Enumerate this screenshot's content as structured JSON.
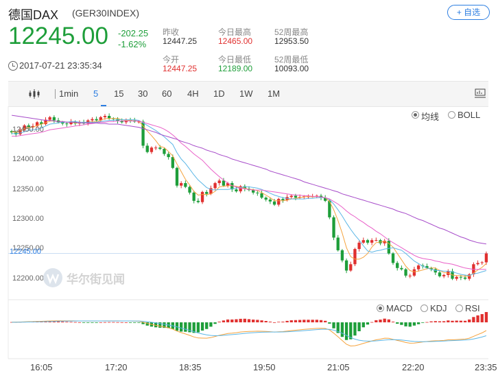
{
  "header": {
    "title": "德国DAX",
    "code": "(GER30INDEX)",
    "add_label": "+ 自选",
    "price": "12245.00",
    "change": "-202.25",
    "change_pct": "-1.62%",
    "timestamp": "2017-07-21 23:35:34"
  },
  "stats": [
    {
      "label": "昨收",
      "value": "12447.25",
      "color": "dark"
    },
    {
      "label": "今日最高",
      "value": "12465.00",
      "color": "red"
    },
    {
      "label": "52周最高",
      "value": "12953.50",
      "color": "dark"
    },
    {
      "label": "今开",
      "value": "12447.25",
      "color": "red"
    },
    {
      "label": "今日最低",
      "value": "12189.00",
      "color": "green"
    },
    {
      "label": "52周最低",
      "value": "10093.00",
      "color": "dark"
    }
  ],
  "toolbar": {
    "timeframes": [
      "1min",
      "5",
      "15",
      "30",
      "60",
      "4H",
      "1D",
      "1W",
      "1M"
    ],
    "active": "5"
  },
  "indicator_options": {
    "main": [
      {
        "label": "均线",
        "selected": true
      },
      {
        "label": "BOLL",
        "selected": false
      }
    ],
    "sub": [
      {
        "label": "MACD",
        "selected": true
      },
      {
        "label": "KDJ",
        "selected": false
      },
      {
        "label": "RSI",
        "selected": false
      }
    ]
  },
  "watermark": "华尔街见闻",
  "colors": {
    "up": "#e0302f",
    "down": "#1e9e3a",
    "ma1": "#f5a23c",
    "ma2": "#5bb6e6",
    "ma3": "#e95fc8",
    "ma4": "#a64ac9",
    "accent": "#2b7de1"
  },
  "chart_data": {
    "type": "candlestick",
    "x_axis_labels": [
      "16:05",
      "17:20",
      "18:35",
      "19:50",
      "21:05",
      "22:20",
      "23:35"
    ],
    "y_axis_labels": [
      "12450.00",
      "12400.00",
      "12350.00",
      "12300.00",
      "12250.00",
      "12200.00"
    ],
    "ylim": [
      12185,
      12475
    ],
    "current_price_label": "12245.00",
    "current_price": 12245,
    "closes": [
      12436,
      12433,
      12440,
      12447,
      12444,
      12446,
      12452,
      12449,
      12456,
      12460,
      12455,
      12452,
      12450,
      12449,
      12453,
      12450,
      12452,
      12450,
      12455,
      12457,
      12455,
      12460,
      12462,
      12458,
      12457,
      12454,
      12452,
      12456,
      12455,
      12453,
      12453,
      12415,
      12405,
      12412,
      12412,
      12410,
      12402,
      12397,
      12380,
      12352,
      12356,
      12350,
      12341,
      12328,
      12326,
      12342,
      12339,
      12348,
      12356,
      12360,
      12352,
      12356,
      12346,
      12343,
      12351,
      12347,
      12345,
      12341,
      12340,
      12333,
      12330,
      12327,
      12322,
      12331,
      12329,
      12334,
      12336,
      12333,
      12334,
      12335,
      12335,
      12335,
      12336,
      12333,
      12328,
      12302,
      12270,
      12250,
      12234,
      12218,
      12228,
      12252,
      12262,
      12266,
      12262,
      12266,
      12266,
      12261,
      12265,
      12245,
      12230,
      12222,
      12220,
      12210,
      12210,
      12220,
      12226,
      12225,
      12222,
      12220,
      12215,
      12209,
      12211,
      12217,
      12205,
      12208,
      12207,
      12205,
      12212,
      12228,
      12230,
      12231,
      12245
    ],
    "series": [
      {
        "name": "MA5",
        "values": [
          12437,
          12436,
          12438,
          12442,
          12444,
          12444,
          12447,
          12449,
          12451,
          12454,
          12454,
          12453,
          12453,
          12452,
          12452,
          12451,
          12451,
          12451,
          12452,
          12453,
          12453,
          12455,
          12458,
          12458,
          12458,
          12458,
          12456,
          12455,
          12455,
          12454,
          12454,
          12446,
          12438,
          12431,
          12423,
          12414,
          12412,
          12406,
          12399,
          12386,
          12374,
          12362,
          12353,
          12343,
          12337,
          12338,
          12338,
          12339,
          12343,
          12350,
          12351,
          12352,
          12352,
          12351,
          12349,
          12348,
          12346,
          12346,
          12344,
          12341,
          12337,
          12333,
          12328,
          12328,
          12328,
          12329,
          12331,
          12332,
          12333,
          12334,
          12335,
          12334,
          12335,
          12334,
          12333,
          12327,
          12314,
          12297,
          12277,
          12254,
          12240,
          12236,
          12236,
          12239,
          12245,
          12255,
          12262,
          12263,
          12264,
          12261,
          12255,
          12245,
          12235,
          12225,
          12218,
          12216,
          12217,
          12219,
          12221,
          12222,
          12222,
          12218,
          12215,
          12214,
          12211,
          12210,
          12210,
          12209,
          12209,
          12214,
          12219,
          12223,
          12229
        ]
      },
      {
        "name": "MA10",
        "values": [
          12434,
          12434,
          12435,
          12437,
          12439,
          12440,
          12441,
          12443,
          12446,
          12449,
          12450,
          12451,
          12452,
          12452,
          12453,
          12453,
          12452,
          12452,
          12452,
          12452,
          12452,
          12453,
          12454,
          12455,
          12455,
          12456,
          12456,
          12456,
          12456,
          12456,
          12455,
          12451,
          12447,
          12443,
          12439,
          12434,
          12429,
          12423,
          12417,
          12404,
          12394,
          12387,
          12378,
          12369,
          12361,
          12355,
          12349,
          12346,
          12345,
          12346,
          12346,
          12346,
          12347,
          12348,
          12349,
          12350,
          12350,
          12349,
          12348,
          12346,
          12343,
          12340,
          12337,
          12335,
          12333,
          12332,
          12331,
          12331,
          12331,
          12331,
          12332,
          12332,
          12333,
          12333,
          12333,
          12330,
          12323,
          12314,
          12304,
          12293,
          12283,
          12274,
          12266,
          12257,
          12249,
          12247,
          12249,
          12250,
          12252,
          12253,
          12254,
          12252,
          12250,
          12245,
          12239,
          12233,
          12229,
          12225,
          12222,
          12220,
          12218,
          12218,
          12217,
          12217,
          12216,
          12214,
          12212,
          12211,
          12210,
          12213,
          12214,
          12216,
          12218
        ]
      },
      {
        "name": "MA20",
        "values": [
          12430,
          12430,
          12431,
          12432,
          12433,
          12434,
          12435,
          12436,
          12438,
          12440,
          12441,
          12442,
          12443,
          12444,
          12445,
          12446,
          12447,
          12448,
          12449,
          12450,
          12451,
          12452,
          12452,
          12453,
          12453,
          12454,
          12454,
          12454,
          12454,
          12454,
          12454,
          12452,
          12450,
          12448,
          12446,
          12444,
          12441,
          12437,
          12432,
          12426,
          12419,
          12414,
          12408,
          12402,
          12397,
          12392,
          12385,
          12378,
          12372,
          12366,
          12361,
          12356,
          12352,
          12350,
          12348,
          12347,
          12346,
          12345,
          12345,
          12345,
          12344,
          12343,
          12342,
          12341,
          12340,
          12339,
          12338,
          12337,
          12337,
          12336,
          12336,
          12335,
          12335,
          12334,
          12333,
          12331,
          12327,
          12323,
          12318,
          12312,
          12307,
          12303,
          12298,
          12294,
          12289,
          12285,
          12280,
          12276,
          12271,
          12266,
          12262,
          12258,
          12254,
          12250,
          12246,
          12242,
          12239,
          12237,
          12236,
          12235,
          12233,
          12232,
          12230,
          12229,
          12228,
          12226,
          12224,
          12222,
          12221,
          12220,
          12220,
          12220,
          12220
        ]
      },
      {
        "name": "MA60",
        "values": [
          12463,
          12462,
          12461,
          12460,
          12459,
          12458,
          12457,
          12456,
          12455,
          12455,
          12454,
          12453,
          12453,
          12452,
          12452,
          12452,
          12451,
          12451,
          12451,
          12451,
          12451,
          12450,
          12450,
          12449,
          12449,
          12449,
          12448,
          12447,
          12446,
          12445,
          12444,
          12442,
          12440,
          12438,
          12436,
          12433,
          12431,
          12429,
          12427,
          12425,
          12422,
          12420,
          12418,
          12415,
          12413,
          12411,
          12408,
          12406,
          12404,
          12401,
          12399,
          12397,
          12394,
          12392,
          12390,
          12388,
          12386,
          12384,
          12382,
          12380,
          12378,
          12375,
          12373,
          12371,
          12369,
          12367,
          12365,
          12363,
          12361,
          12358,
          12356,
          12354,
          12352,
          12350,
          12348,
          12346,
          12344,
          12342,
          12339,
          12337,
          12335,
          12333,
          12331,
          12329,
          12327,
          12325,
          12323,
          12321,
          12319,
          12317,
          12315,
          12312,
          12310,
          12308,
          12305,
          12302,
          12299,
          12297,
          12294,
          12291,
          12288,
          12285,
          12283,
          12280,
          12277,
          12274,
          12271,
          12269,
          12266,
          12264,
          12262,
          12261,
          12260
        ]
      }
    ],
    "macd": {
      "dif": [
        0.2,
        0.3,
        0.4,
        0.6,
        0.8,
        0.9,
        1.1,
        1.2,
        1.4,
        1.6,
        1.7,
        1.8,
        1.8,
        1.8,
        1.8,
        1.7,
        1.6,
        1.5,
        1.5,
        1.5,
        1.5,
        1.6,
        1.7,
        1.7,
        1.7,
        1.7,
        1.6,
        1.6,
        1.5,
        1.4,
        1.3,
        0.2,
        -1.2,
        -2.4,
        -3.5,
        -4.5,
        -5.4,
        -6.5,
        -7.9,
        -10.2,
        -12,
        -13.5,
        -15.2,
        -17,
        -18.2,
        -18.4,
        -18.5,
        -17.8,
        -16.5,
        -15.1,
        -14.1,
        -13,
        -12.6,
        -12.1,
        -11.3,
        -10.9,
        -10.6,
        -10.5,
        -10.3,
        -10.4,
        -10.6,
        -10.9,
        -11.3,
        -11,
        -10.8,
        -10.2,
        -9.6,
        -9.2,
        -8.7,
        -8.2,
        -7.8,
        -7.4,
        -7,
        -6.9,
        -7.1,
        -8.9,
        -12.6,
        -16.8,
        -21.2,
        -25.6,
        -27.6,
        -27.3,
        -26.1,
        -24.5,
        -23.2,
        -21.7,
        -20.4,
        -19.6,
        -18.5,
        -18.6,
        -19.8,
        -21.1,
        -22.1,
        -23.5,
        -24.3,
        -24.2,
        -23.6,
        -22.9,
        -22.3,
        -21.8,
        -21.5,
        -21.4,
        -21.1,
        -20.4,
        -20.4,
        -20.1,
        -19.8,
        -19.5,
        -18.5,
        -16.3,
        -14.2,
        -12.3,
        -9.6
      ],
      "dea": [
        0.1,
        0.1,
        0.2,
        0.3,
        0.4,
        0.5,
        0.6,
        0.7,
        0.9,
        1,
        1.1,
        1.3,
        1.4,
        1.5,
        1.5,
        1.6,
        1.6,
        1.6,
        1.6,
        1.6,
        1.6,
        1.6,
        1.6,
        1.6,
        1.6,
        1.6,
        1.6,
        1.6,
        1.6,
        1.5,
        1.5,
        1.2,
        0.7,
        0.1,
        -0.6,
        -1.4,
        -2.2,
        -3.1,
        -4,
        -5.3,
        -6.6,
        -8,
        -9.4,
        -10.9,
        -12.4,
        -13.6,
        -14.6,
        -15.3,
        -15.6,
        -15.5,
        -15.2,
        -14.7,
        -14.3,
        -13.9,
        -13.4,
        -12.9,
        -12.4,
        -12.1,
        -11.8,
        -11.5,
        -11.4,
        -11.3,
        -11.3,
        -11.3,
        -11.2,
        -11,
        -10.7,
        -10.4,
        -10.1,
        -9.7,
        -9.3,
        -8.9,
        -8.5,
        -8.2,
        -8,
        -8.2,
        -9.1,
        -10.6,
        -12.7,
        -15.3,
        -17.7,
        -19.6,
        -20.9,
        -21.6,
        -21.9,
        -21.9,
        -21.6,
        -21.2,
        -20.7,
        -20.3,
        -20.2,
        -20.3,
        -20.6,
        -21.2,
        -21.8,
        -22.3,
        -22.5,
        -22.6,
        -22.5,
        -22.4,
        -22.2,
        -22,
        -21.8,
        -21.5,
        -21.3,
        -21.1,
        -20.9,
        -20.6,
        -20.2,
        -19.4,
        -18.3,
        -17.1,
        -15.6
      ],
      "hist": [
        0.3,
        0.4,
        0.5,
        0.6,
        0.8,
        0.9,
        1,
        1.1,
        1.2,
        1.2,
        1.2,
        1.1,
        0.9,
        0.7,
        0.5,
        0.3,
        0.1,
        -0.2,
        -0.3,
        -0.2,
        -0.1,
        0.1,
        0.2,
        0.3,
        0.3,
        0.2,
        0.1,
        0,
        -0.1,
        -0.2,
        -0.4,
        -2.1,
        -3.8,
        -5,
        -5.8,
        -6.3,
        -6.5,
        -6.8,
        -7.8,
        -9.8,
        -10.8,
        -11,
        -11.6,
        -12.3,
        -11.7,
        -9.6,
        -7.8,
        -5.1,
        -1.8,
        0.8,
        2.2,
        3.3,
        3.3,
        3.6,
        4.1,
        4.2,
        3.7,
        3.2,
        2.9,
        2.3,
        1.6,
        0.8,
        0,
        0.6,
        0.8,
        1.7,
        2.4,
        2.6,
        2.8,
        3,
        3,
        3,
        3,
        2.6,
        1.8,
        -1.5,
        -7,
        -12.4,
        -17,
        -20.6,
        -19.8,
        -15.4,
        -10.4,
        -5.8,
        -2.6,
        0.3,
        2.5,
        3.2,
        4.3,
        3.4,
        0.8,
        -1.6,
        -3,
        -4.7,
        -5.1,
        -3.8,
        -2.2,
        -0.6,
        0.3,
        1.1,
        1.4,
        1.2,
        1.3,
        2.2,
        1.8,
        2,
        1.9,
        1.8,
        3.3,
        6.2,
        8.1,
        9.6,
        12
      ]
    }
  }
}
